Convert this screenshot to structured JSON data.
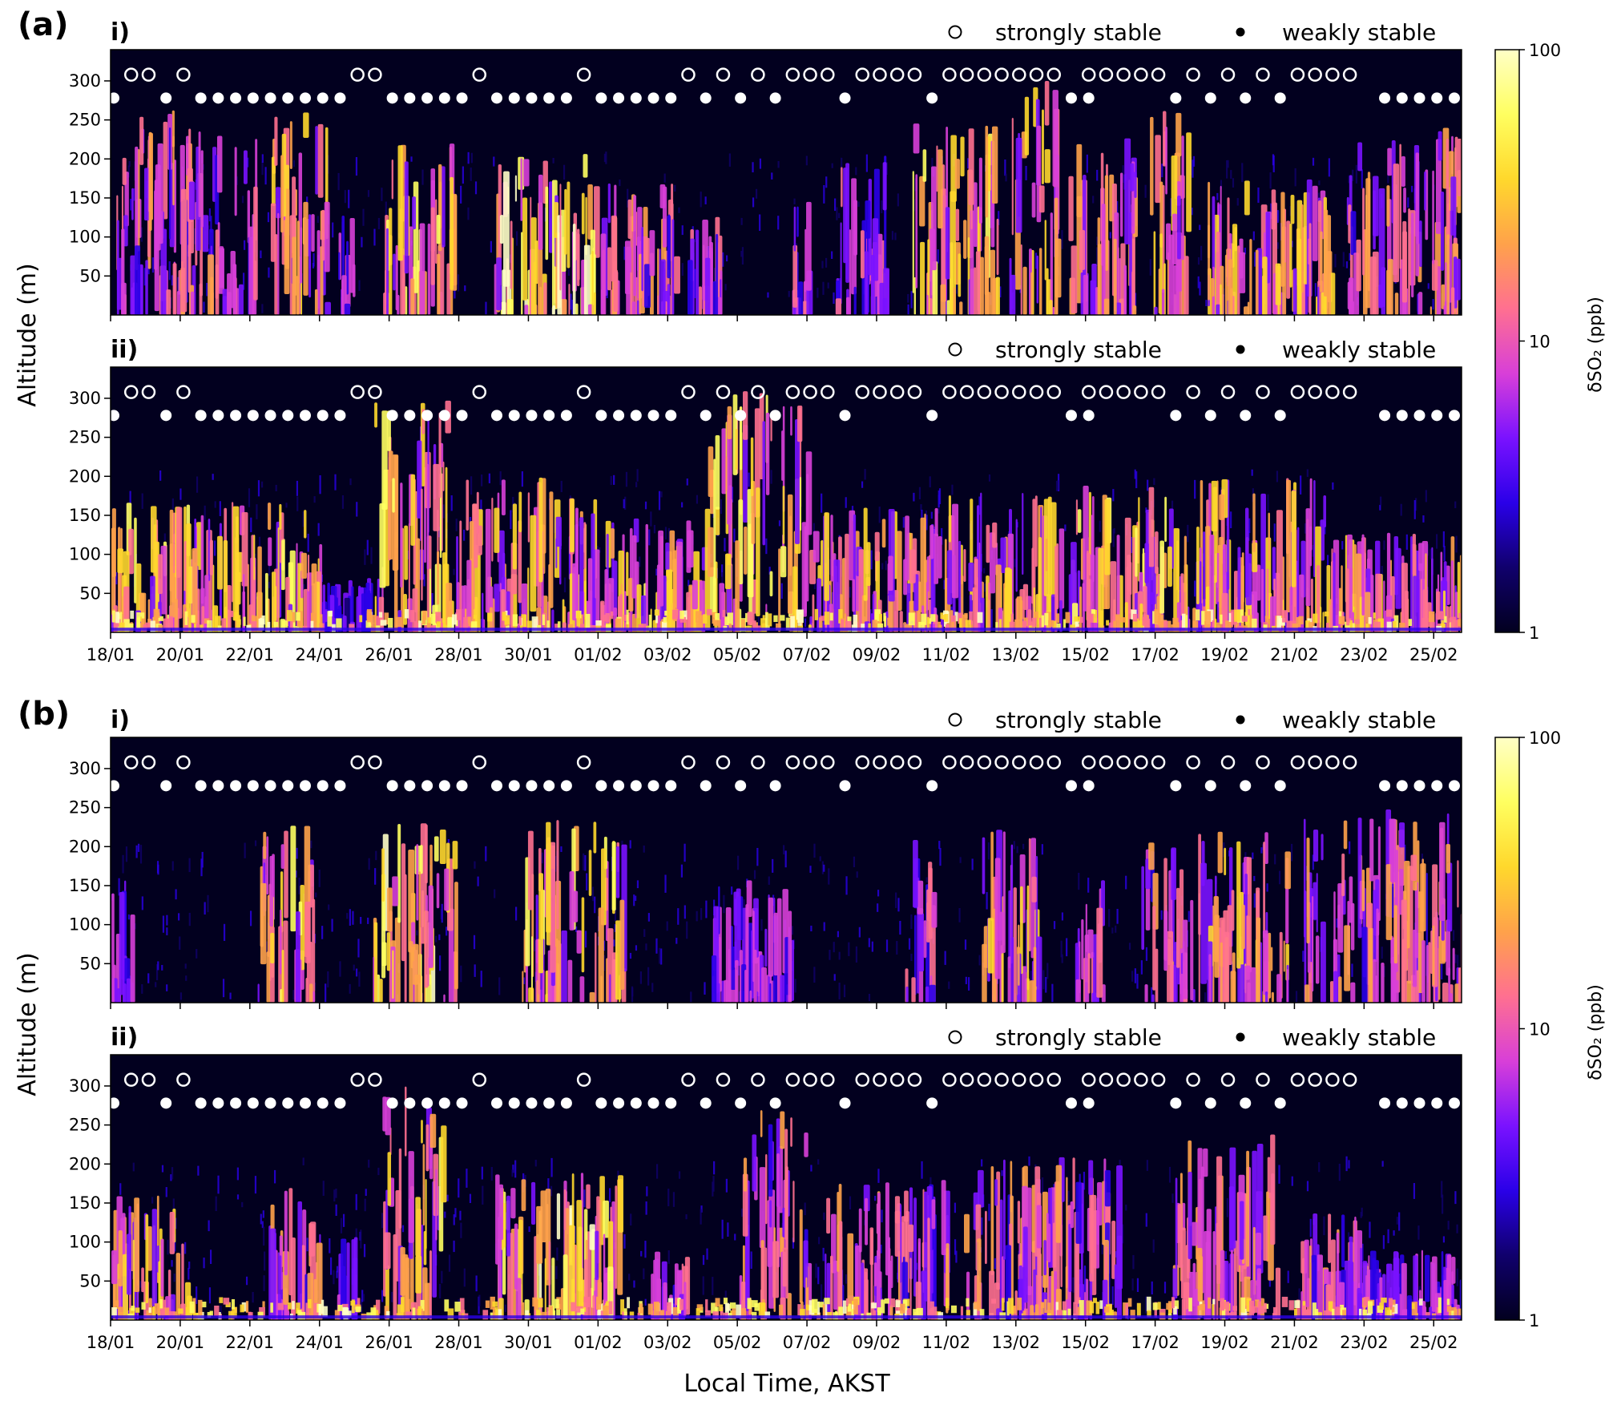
{
  "panels": [
    {
      "label": "(a)",
      "subplots": [
        {
          "label": "i)",
          "pattern": "a1"
        },
        {
          "label": "ii)",
          "pattern": "a2"
        }
      ]
    },
    {
      "label": "(b)",
      "subplots": [
        {
          "label": "i)",
          "pattern": "b1"
        },
        {
          "label": "ii)",
          "pattern": "b2"
        }
      ]
    }
  ],
  "legend": {
    "strongly_stable": "strongly stable",
    "weakly_stable": "weakly stable"
  },
  "chart_data": {
    "type": "heatmap",
    "title": "",
    "xlabel": "Local Time, AKST",
    "ylabel": "Altitude (m)",
    "x_ticks": [
      "18/01",
      "20/01",
      "22/01",
      "24/01",
      "26/01",
      "28/01",
      "30/01",
      "01/02",
      "03/02",
      "05/02",
      "07/02",
      "09/02",
      "11/02",
      "13/02",
      "15/02",
      "17/02",
      "19/02",
      "21/02",
      "23/02",
      "25/02"
    ],
    "y_ticks": [
      50,
      100,
      150,
      200,
      250,
      300
    ],
    "ylim": [
      0,
      340
    ],
    "x_range_days": {
      "start": "18/01",
      "end": "25/02 + ~0.8 day",
      "total_days": 38.8
    },
    "colorbar": {
      "label": "δSO₂ (ppb)",
      "scale": "log",
      "range": [
        1,
        100
      ],
      "ticks": [
        "1",
        "10",
        "100"
      ],
      "colormap": "gnuplot2",
      "stops": [
        "#02001f",
        "#10006c",
        "#2a00e8",
        "#7a12ff",
        "#d83fd8",
        "#ff7090",
        "#ffa24a",
        "#ffd82c",
        "#ffff60",
        "#ffffc6"
      ]
    },
    "stability": {
      "strongly_stable_days": [
        0.5,
        1,
        2,
        7,
        7.5,
        10.5,
        13.5,
        16.5,
        17.5,
        18.5,
        19.5,
        20,
        20.5,
        21.5,
        22,
        22.5,
        23,
        24,
        24.5,
        25,
        25.5,
        26,
        26.5,
        27,
        28,
        28.5,
        29,
        29.5,
        30,
        31,
        32,
        33,
        34,
        34.5,
        35,
        35.5
      ],
      "weakly_stable_days": [
        0,
        1.5,
        2.5,
        3,
        3.5,
        4,
        4.5,
        5,
        5.5,
        6,
        6.5,
        8,
        8.5,
        9,
        9.5,
        10,
        11,
        11.5,
        12,
        12.5,
        13,
        14,
        14.5,
        15,
        15.5,
        16,
        17,
        18,
        19,
        21,
        23.5,
        27.5,
        28,
        30.5,
        31.5,
        32.5,
        33.5,
        36.5,
        37,
        37.5,
        38,
        38.5
      ]
    },
    "series": [
      {
        "panel": "(a)",
        "subplot": "i)"
      },
      {
        "panel": "(a)",
        "subplot": "ii)"
      },
      {
        "panel": "(b)",
        "subplot": "i)"
      },
      {
        "panel": "(b)",
        "subplot": "ii)"
      }
    ]
  }
}
